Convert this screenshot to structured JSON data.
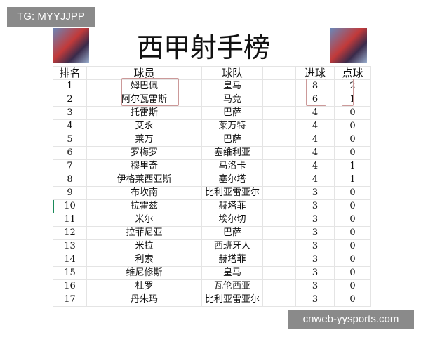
{
  "watermark_top": "TG: MYYJJPP",
  "watermark_bottom": "cnweb-yysports.com",
  "title": "西甲射手榜",
  "headers": [
    "排名",
    "球员",
    "球队",
    "",
    "进球",
    "点球"
  ],
  "rows": [
    [
      "1",
      "姆巴佩",
      "皇马",
      "8",
      "2"
    ],
    [
      "2",
      "阿尔瓦雷斯",
      "马竞",
      "6",
      "1"
    ],
    [
      "3",
      "托雷斯",
      "巴萨",
      "4",
      "0"
    ],
    [
      "4",
      "艾永",
      "莱万特",
      "4",
      "0"
    ],
    [
      "5",
      "莱万",
      "巴萨",
      "4",
      "0"
    ],
    [
      "6",
      "罗梅罗",
      "塞维利亚",
      "4",
      "0"
    ],
    [
      "7",
      "穆里奇",
      "马洛卡",
      "4",
      "1"
    ],
    [
      "8",
      "伊格莱西亚斯",
      "塞尔塔",
      "4",
      "1"
    ],
    [
      "9",
      "布坎南",
      "比利亚雷亚尔",
      "3",
      "0"
    ],
    [
      "10",
      "拉霍兹",
      "赫塔菲",
      "3",
      "0"
    ],
    [
      "11",
      "米尔",
      "埃尔切",
      "3",
      "0"
    ],
    [
      "12",
      "拉菲尼亚",
      "巴萨",
      "3",
      "0"
    ],
    [
      "13",
      "米拉",
      "西班牙人",
      "3",
      "0"
    ],
    [
      "14",
      "利索",
      "赫塔菲",
      "3",
      "0"
    ],
    [
      "15",
      "维尼修斯",
      "皇马",
      "3",
      "0"
    ],
    [
      "16",
      "杜罗",
      "瓦伦西亚",
      "3",
      "0"
    ],
    [
      "17",
      "丹朱玛",
      "比利亚雷亚尔",
      "3",
      "0"
    ]
  ],
  "highlight_color": "#cc9999"
}
